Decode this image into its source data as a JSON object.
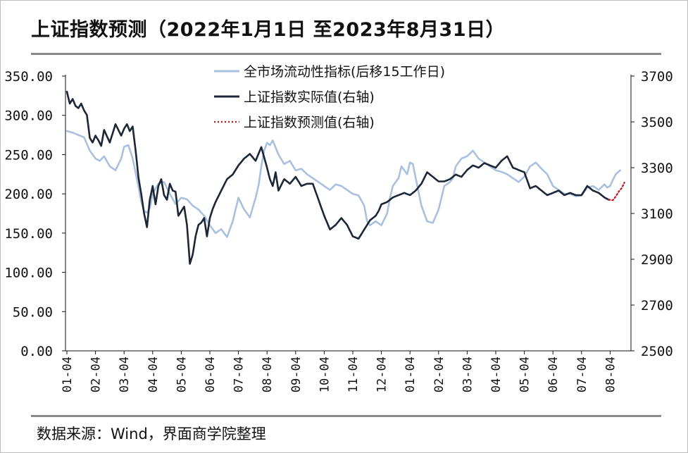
{
  "title": "上证指数预测（2022年1月1日 至2023年8月31日）",
  "source": "数据来源：Wind，界面商学院整理",
  "colors": {
    "liquidity": "#a9c0df",
    "actual": "#1c2636",
    "forecast": "#c0141c",
    "axis": "#111111",
    "rule": "#8a8a8a"
  },
  "chart_data": {
    "type": "line",
    "title": "上证指数预测（2022年1月1日 至2023年8月31日）",
    "x_tick_labels": [
      "01-04",
      "02-04",
      "03-04",
      "04-04",
      "05-04",
      "06-04",
      "07-04",
      "08-04",
      "09-04",
      "10-04",
      "11-04",
      "12-04",
      "01-04",
      "02-04",
      "03-04",
      "04-04",
      "05-04",
      "06-04",
      "07-04",
      "08-04"
    ],
    "y_left": {
      "range": [
        0,
        350
      ],
      "ticks": [
        "0.00",
        "50.00",
        "100.00",
        "150.00",
        "200.00",
        "250.00",
        "300.00",
        "350.00"
      ]
    },
    "y_right": {
      "range": [
        2500,
        3700
      ],
      "ticks": [
        "2500",
        "2700",
        "2900",
        "3100",
        "3300",
        "3500",
        "3700"
      ]
    },
    "legend": {
      "position": "top-center"
    },
    "series": [
      {
        "name": "全市场流动性指标(后移15工作日)",
        "axis": "left",
        "style": "solid",
        "x": [
          0,
          0.2,
          0.4,
          0.6,
          0.8,
          1.0,
          1.15,
          1.3,
          1.5,
          1.7,
          1.9,
          2.0,
          2.15,
          2.3,
          2.5,
          2.6,
          2.7,
          2.8,
          2.9,
          3.0,
          3.2,
          3.4,
          3.6,
          3.8,
          4.0,
          4.2,
          4.4,
          4.6,
          4.8,
          5.0,
          5.2,
          5.4,
          5.6,
          5.8,
          6.0,
          6.2,
          6.4,
          6.6,
          6.7,
          6.8,
          6.9,
          7.0,
          7.1,
          7.2,
          7.4,
          7.6,
          7.8,
          8.0,
          8.2,
          8.4,
          8.6,
          8.8,
          9.0,
          9.2,
          9.4,
          9.6,
          9.8,
          10.0,
          10.2,
          10.4,
          10.5,
          10.6,
          10.8,
          11.0,
          11.2,
          11.3,
          11.4,
          11.6,
          11.7,
          11.8,
          11.9,
          12.0,
          12.1,
          12.2,
          12.4,
          12.6,
          12.8,
          13.0,
          13.2,
          13.4,
          13.5,
          13.6,
          13.8,
          14.0,
          14.2,
          14.4,
          14.6,
          14.8,
          15.0,
          15.2,
          15.4,
          15.6,
          15.8,
          16.0,
          16.2,
          16.4,
          16.6,
          16.8,
          17.0,
          17.2,
          17.4,
          17.6,
          17.8,
          18.0,
          18.2,
          18.4,
          18.6,
          18.8,
          18.9,
          19.0,
          19.1,
          19.2,
          19.35
        ],
        "values": [
          280,
          278,
          275,
          272,
          255,
          245,
          242,
          248,
          235,
          230,
          245,
          260,
          262,
          245,
          210,
          190,
          178,
          176,
          182,
          200,
          213,
          215,
          200,
          187,
          195,
          193,
          185,
          180,
          172,
          160,
          150,
          155,
          145,
          165,
          195,
          180,
          170,
          195,
          210,
          235,
          255,
          265,
          262,
          268,
          250,
          238,
          242,
          230,
          232,
          225,
          220,
          215,
          210,
          205,
          212,
          210,
          205,
          200,
          198,
          185,
          165,
          160,
          165,
          160,
          175,
          195,
          210,
          220,
          235,
          230,
          225,
          240,
          238,
          220,
          185,
          165,
          163,
          180,
          210,
          215,
          220,
          235,
          245,
          248,
          255,
          245,
          240,
          235,
          230,
          228,
          225,
          220,
          215,
          222,
          235,
          240,
          232,
          225,
          210,
          205,
          200,
          200,
          197,
          198,
          208,
          210,
          205,
          212,
          208,
          210,
          218,
          225,
          230
        ]
      },
      {
        "name": "上证指数实际值(右轴)",
        "axis": "right",
        "style": "solid",
        "x": [
          0,
          0.1,
          0.2,
          0.3,
          0.4,
          0.5,
          0.6,
          0.7,
          0.8,
          0.9,
          1.0,
          1.1,
          1.2,
          1.3,
          1.5,
          1.7,
          1.9,
          2.0,
          2.1,
          2.2,
          2.3,
          2.4,
          2.5,
          2.6,
          2.7,
          2.8,
          2.9,
          3.0,
          3.1,
          3.2,
          3.3,
          3.4,
          3.5,
          3.6,
          3.7,
          3.8,
          3.9,
          4.0,
          4.1,
          4.2,
          4.3,
          4.4,
          4.5,
          4.6,
          4.7,
          4.8,
          4.9,
          5.0,
          5.1,
          5.2,
          5.4,
          5.6,
          5.8,
          6.0,
          6.2,
          6.4,
          6.6,
          6.8,
          7.0,
          7.1,
          7.2,
          7.3,
          7.4,
          7.6,
          7.8,
          8.0,
          8.2,
          8.4,
          8.6,
          8.8,
          9.0,
          9.2,
          9.4,
          9.6,
          9.8,
          10.0,
          10.2,
          10.4,
          10.6,
          10.8,
          10.9,
          11.0,
          11.2,
          11.4,
          11.6,
          11.8,
          12.0,
          12.2,
          12.4,
          12.6,
          12.8,
          13.0,
          13.2,
          13.4,
          13.6,
          13.8,
          14.0,
          14.2,
          14.4,
          14.6,
          14.8,
          15.0,
          15.2,
          15.4,
          15.6,
          15.8,
          16.0,
          16.2,
          16.4,
          16.6,
          16.8,
          17.0,
          17.2,
          17.4,
          17.6,
          17.8,
          18.0,
          18.2,
          18.4,
          18.6,
          18.8,
          18.95
        ],
        "values": [
          3632,
          3580,
          3600,
          3570,
          3560,
          3580,
          3550,
          3530,
          3430,
          3410,
          3440,
          3420,
          3395,
          3465,
          3410,
          3490,
          3440,
          3470,
          3490,
          3460,
          3480,
          3380,
          3260,
          3185,
          3100,
          3040,
          3160,
          3220,
          3140,
          3220,
          3250,
          3180,
          3160,
          3230,
          3200,
          3195,
          3090,
          3110,
          3130,
          3050,
          2880,
          2920,
          3000,
          3050,
          3060,
          3080,
          3000,
          3080,
          3120,
          3150,
          3200,
          3250,
          3270,
          3310,
          3340,
          3360,
          3330,
          3390,
          3300,
          3250,
          3220,
          3280,
          3200,
          3250,
          3230,
          3260,
          3220,
          3230,
          3230,
          3160,
          3090,
          3030,
          3050,
          3080,
          3050,
          3000,
          2990,
          3030,
          3070,
          3090,
          3110,
          3140,
          3150,
          3170,
          3180,
          3190,
          3180,
          3200,
          3230,
          3280,
          3260,
          3240,
          3240,
          3250,
          3270,
          3260,
          3290,
          3310,
          3300,
          3320,
          3310,
          3300,
          3330,
          3350,
          3300,
          3290,
          3280,
          3210,
          3220,
          3200,
          3180,
          3190,
          3200,
          3180,
          3190,
          3180,
          3180,
          3220,
          3200,
          3190,
          3170,
          3160
        ],
        "note": "Sparse digitization; rendered curve adds intermediate points."
      },
      {
        "name": "上证指数预测值(右轴)",
        "axis": "right",
        "style": "dotted",
        "x": [
          18.95,
          19.1,
          19.2,
          19.3,
          19.4,
          19.5
        ],
        "values": [
          3160,
          3158,
          3175,
          3195,
          3210,
          3235
        ]
      }
    ]
  }
}
